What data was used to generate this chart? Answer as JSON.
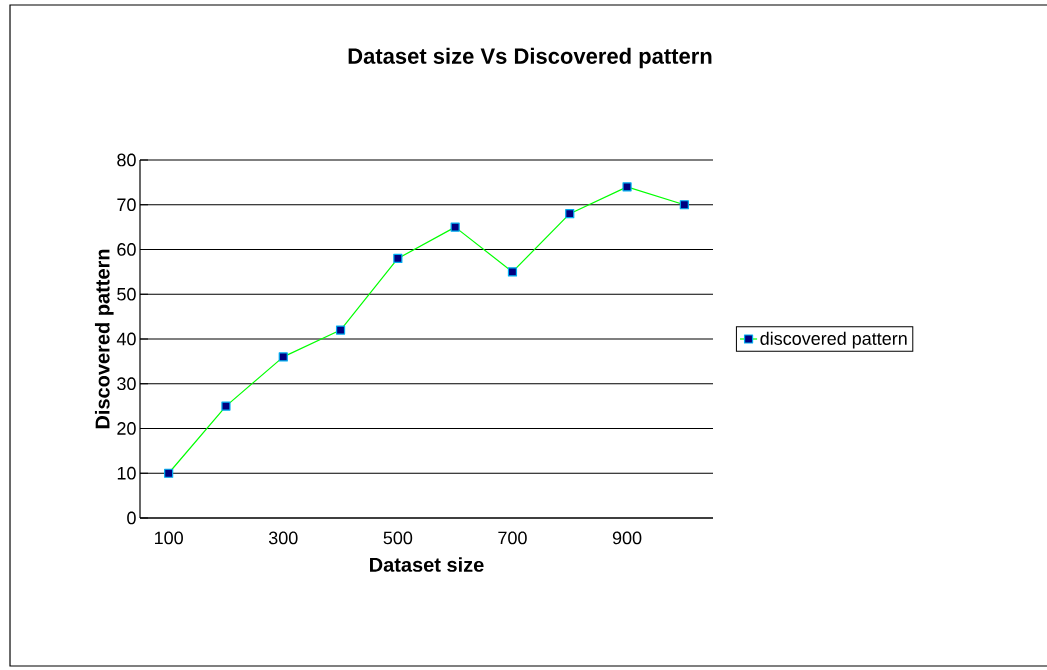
{
  "chart_data": {
    "type": "line",
    "title": "Dataset size Vs Discovered pattern",
    "xlabel": "Dataset size",
    "ylabel": "Discovered pattern",
    "categories": [
      "100",
      null,
      "300",
      null,
      "500",
      null,
      "700",
      null,
      "900",
      null
    ],
    "series": [
      {
        "name": "discovered pattern",
        "color": "#00ff00",
        "values": [
          10,
          25,
          36,
          42,
          58,
          65,
          55,
          68,
          74,
          70
        ]
      }
    ],
    "ylim": [
      0,
      80
    ],
    "yticks": [
      0,
      10,
      20,
      30,
      40,
      50,
      60,
      70,
      80
    ],
    "grid": "y",
    "legend": "right",
    "marker": "square",
    "line_style": "solid"
  }
}
